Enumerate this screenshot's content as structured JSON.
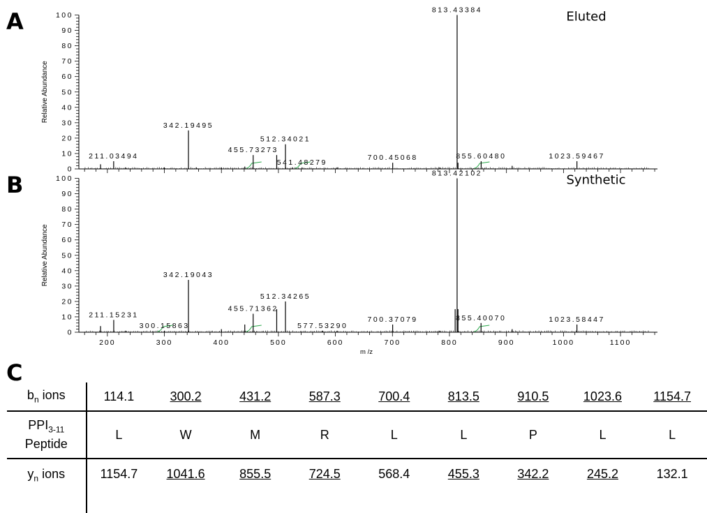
{
  "panels": [
    {
      "letter": "A",
      "label": "Eluted",
      "ylabel": "Relative Abundance",
      "peaks": [
        {
          "mz": 188.0,
          "ab": 3
        },
        {
          "mz": 211.03494,
          "ab": 5,
          "label": "211.03494"
        },
        {
          "mz": 232.0,
          "ab": 1
        },
        {
          "mz": 300.0,
          "ab": 1
        },
        {
          "mz": 342.19495,
          "ab": 25,
          "label": "342.19495"
        },
        {
          "mz": 356.0,
          "ab": 1
        },
        {
          "mz": 400.0,
          "ab": 1
        },
        {
          "mz": 441.0,
          "ab": 1.5
        },
        {
          "mz": 455.73273,
          "ab": 9,
          "label": "455.73273"
        },
        {
          "mz": 497.0,
          "ab": 9
        },
        {
          "mz": 512.34021,
          "ab": 16,
          "label": "512.34021"
        },
        {
          "mz": 525.0,
          "ab": 1
        },
        {
          "mz": 541.48279,
          "ab": 1,
          "label": "541.48279"
        },
        {
          "mz": 603.0,
          "ab": 1
        },
        {
          "mz": 700.45068,
          "ab": 4,
          "label": "700.45068"
        },
        {
          "mz": 783.0,
          "ab": 1
        },
        {
          "mz": 813.43384,
          "ab": 100,
          "label": "813.43384"
        },
        {
          "mz": 815.0,
          "ab": 4
        },
        {
          "mz": 855.6048,
          "ab": 5,
          "label": "855.60480"
        },
        {
          "mz": 910.0,
          "ab": 2
        },
        {
          "mz": 1023.59467,
          "ab": 5,
          "label": "1023.59467"
        }
      ],
      "isotope_clusters": [
        {
          "mz": 455.7
        },
        {
          "mz": 541.5
        },
        {
          "mz": 855.6
        }
      ]
    },
    {
      "letter": "B",
      "label": "Synthetic",
      "ylabel": "Relative Abundance",
      "xlabel": "m /z",
      "peaks": [
        {
          "mz": 188.0,
          "ab": 4
        },
        {
          "mz": 211.15231,
          "ab": 8,
          "label": "211.15231"
        },
        {
          "mz": 232.0,
          "ab": 1
        },
        {
          "mz": 300.15863,
          "ab": 1,
          "label": "300.15863"
        },
        {
          "mz": 342.19043,
          "ab": 34,
          "label": "342.19043"
        },
        {
          "mz": 400.0,
          "ab": 2
        },
        {
          "mz": 441.0,
          "ab": 5
        },
        {
          "mz": 455.71362,
          "ab": 12,
          "label": "455.71362"
        },
        {
          "mz": 497.0,
          "ab": 15
        },
        {
          "mz": 512.34265,
          "ab": 20,
          "label": "512.34265"
        },
        {
          "mz": 577.5329,
          "ab": 1,
          "label": "577.53290"
        },
        {
          "mz": 603.0,
          "ab": 1
        },
        {
          "mz": 700.37079,
          "ab": 5,
          "label": "700.37079"
        },
        {
          "mz": 783.0,
          "ab": 1
        },
        {
          "mz": 810.0,
          "ab": 15
        },
        {
          "mz": 813.42102,
          "ab": 100,
          "label": "813.42102"
        },
        {
          "mz": 815.0,
          "ab": 15
        },
        {
          "mz": 855.4007,
          "ab": 6,
          "label": "855.40070"
        },
        {
          "mz": 910.0,
          "ab": 2
        },
        {
          "mz": 1023.58447,
          "ab": 5,
          "label": "1023.58447"
        }
      ],
      "isotope_clusters": [
        {
          "mz": 300.2
        },
        {
          "mz": 455.7
        },
        {
          "mz": 855.4
        }
      ]
    }
  ],
  "chart_data": [
    {
      "type": "bar",
      "title": "Eluted",
      "ylabel": "Relative Abundance",
      "ylim": [
        0,
        100
      ],
      "x": [
        211.03494,
        342.19495,
        455.73273,
        512.34021,
        541.48279,
        700.45068,
        813.43384,
        855.6048,
        1023.59467
      ],
      "series": [
        {
          "values": [
            5,
            25,
            9,
            16,
            1,
            4,
            100,
            5,
            5
          ]
        }
      ]
    },
    {
      "type": "bar",
      "title": "Synthetic",
      "ylabel": "Relative Abundance",
      "xlabel": "m /z",
      "ylim": [
        0,
        100
      ],
      "xlim": [
        150,
        1170
      ],
      "x": [
        211.15231,
        300.15863,
        342.19043,
        455.71362,
        512.34265,
        577.5329,
        700.37079,
        813.42102,
        855.4007,
        1023.58447
      ],
      "series": [
        {
          "values": [
            8,
            1,
            34,
            12,
            20,
            1,
            5,
            100,
            6,
            5
          ]
        }
      ]
    }
  ],
  "axes": {
    "yticks": [
      "0",
      "10",
      "20",
      "30",
      "40",
      "50",
      "60",
      "70",
      "80",
      "90",
      "100"
    ],
    "xticks": [
      "200",
      "300",
      "400",
      "500",
      "600",
      "700",
      "800",
      "900",
      "1000",
      "1100"
    ]
  },
  "table": {
    "letter": "C",
    "rows": [
      {
        "label": "b",
        "sub": "n",
        "suffix": " ions",
        "cells": [
          {
            "v": "114.1",
            "u": false
          },
          {
            "v": "300.2",
            "u": true
          },
          {
            "v": "431.2",
            "u": true
          },
          {
            "v": "587.3",
            "u": true
          },
          {
            "v": "700.4",
            "u": true
          },
          {
            "v": "813.5",
            "u": true
          },
          {
            "v": "910.5",
            "u": true
          },
          {
            "v": "1023.6",
            "u": true
          },
          {
            "v": "1154.7",
            "u": true
          }
        ]
      },
      {
        "label": "PPI",
        "sub": "3-11",
        "suffix": "Peptide",
        "cells": [
          {
            "v": "L",
            "u": false
          },
          {
            "v": "W",
            "u": false
          },
          {
            "v": "M",
            "u": false
          },
          {
            "v": "R",
            "u": false
          },
          {
            "v": "L",
            "u": false
          },
          {
            "v": "L",
            "u": false
          },
          {
            "v": "P",
            "u": false
          },
          {
            "v": "L",
            "u": false
          },
          {
            "v": "L",
            "u": false
          }
        ]
      },
      {
        "label": "y",
        "sub": "n",
        "suffix": " ions",
        "cells": [
          {
            "v": "1154.7",
            "u": false
          },
          {
            "v": "1041.6",
            "u": true
          },
          {
            "v": "855.5",
            "u": true
          },
          {
            "v": "724.5",
            "u": true
          },
          {
            "v": "568.4",
            "u": false
          },
          {
            "v": "455.3",
            "u": true
          },
          {
            "v": "342.2",
            "u": true
          },
          {
            "v": "245.2",
            "u": true
          },
          {
            "v": "132.1",
            "u": false
          }
        ]
      }
    ]
  },
  "colors": {
    "peak": "#000000",
    "isotope": "#2aa84a",
    "axis": "#000000"
  }
}
